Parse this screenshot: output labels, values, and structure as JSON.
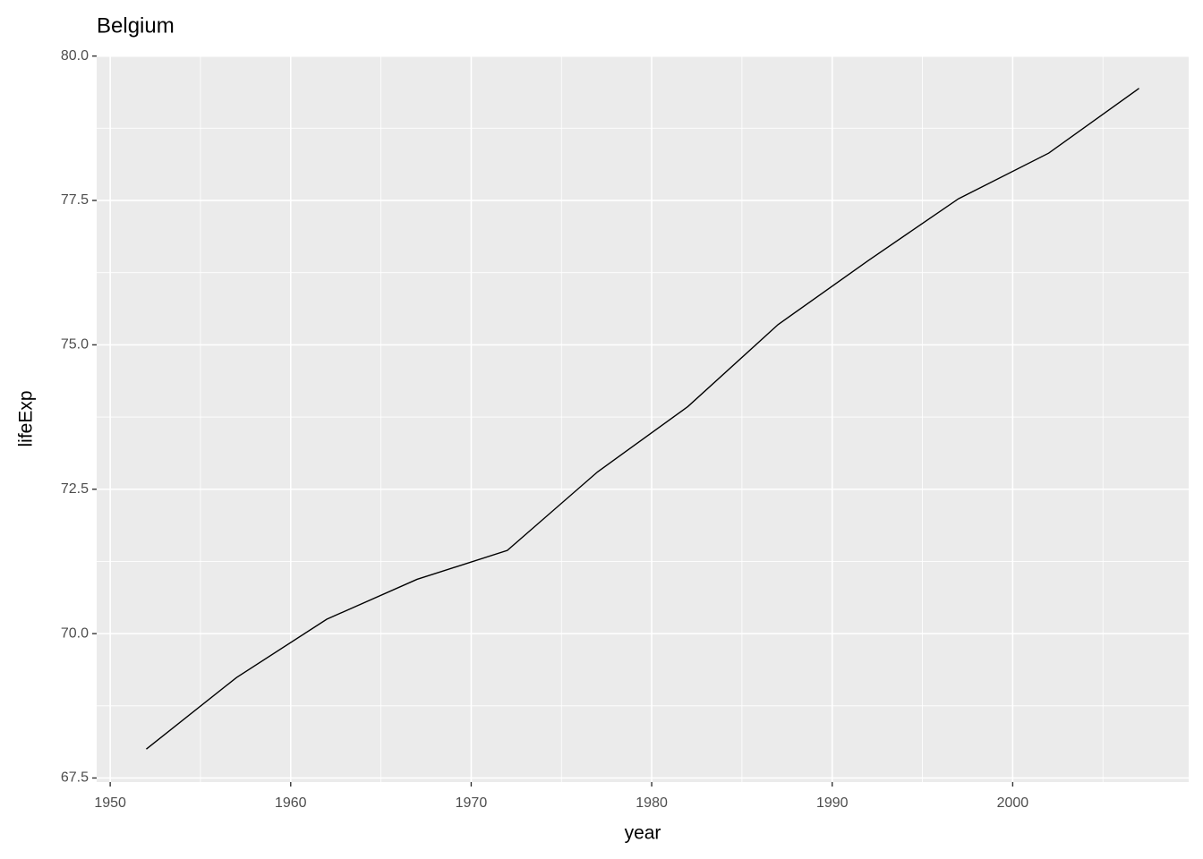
{
  "chart_data": {
    "type": "line",
    "title": "Belgium",
    "x_label": "year",
    "y_label": "lifeExp",
    "x": [
      1952,
      1957,
      1962,
      1967,
      1972,
      1977,
      1982,
      1987,
      1992,
      1997,
      2002,
      2007
    ],
    "series": [
      {
        "color": "#000000",
        "values": [
          68.0,
          69.24,
          70.25,
          70.94,
          71.44,
          72.8,
          73.93,
          75.35,
          76.46,
          77.53,
          78.32,
          79.441
        ]
      }
    ],
    "xlim": [
      1949.25,
      2009.75
    ],
    "ylim": [
      67.43,
      80.01
    ],
    "xticks": [
      1950,
      1960,
      1970,
      1980,
      1990,
      2000
    ],
    "yticks": [
      {
        "value": 67.5,
        "label": "67.5"
      },
      {
        "value": 70,
        "label": "70.0"
      },
      72.5,
      {
        "value": 75,
        "label": "75.0"
      },
      77.5,
      {
        "value": 80,
        "label": "80.0"
      }
    ],
    "x_minor_grid": [
      1955,
      1965,
      1975,
      1985,
      1995,
      2005
    ],
    "y_minor_grid": [
      68.75,
      71.25,
      73.75,
      76.25,
      78.75
    ],
    "grid": true
  }
}
